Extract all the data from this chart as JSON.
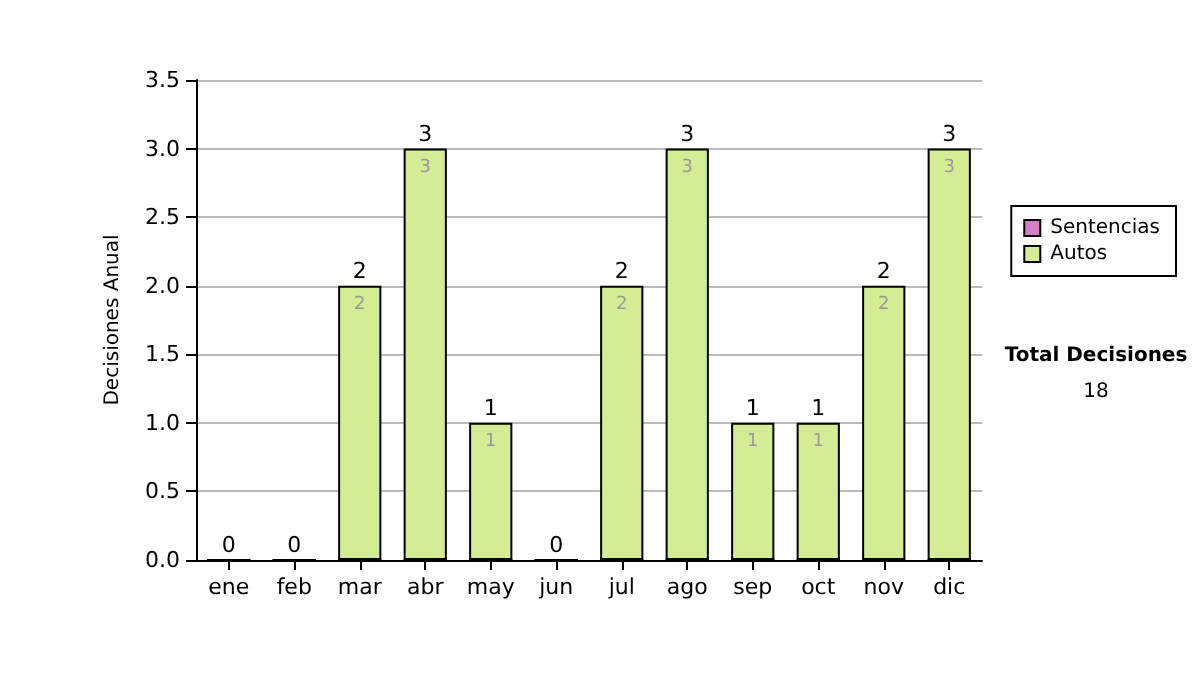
{
  "chart_data": {
    "type": "bar",
    "stacked": true,
    "ylabel": "Decisiones Anual",
    "categories": [
      "ene",
      "feb",
      "mar",
      "abr",
      "may",
      "jun",
      "jul",
      "ago",
      "sep",
      "oct",
      "nov",
      "dic"
    ],
    "series": [
      {
        "name": "Sentencias",
        "color": "#d580c4",
        "values": [
          0,
          0,
          0,
          0,
          0,
          0,
          0,
          0,
          0,
          0,
          0,
          0
        ]
      },
      {
        "name": "Autos",
        "color": "#d4ec94",
        "values": [
          0,
          0,
          2,
          3,
          1,
          0,
          2,
          3,
          1,
          1,
          2,
          3
        ],
        "value_labels": [
          null,
          null,
          "2",
          "3",
          "1",
          null,
          "2",
          "3",
          "1",
          "1",
          "2",
          "3"
        ]
      }
    ],
    "totals": [
      "0",
      "0",
      "2",
      "3",
      "1",
      "0",
      "2",
      "3",
      "1",
      "1",
      "2",
      "3"
    ],
    "ylim": [
      0,
      3.5
    ],
    "yticks": [
      {
        "value": 0,
        "label": "0.0"
      },
      0.5,
      {
        "value": 1,
        "label": "1.0"
      },
      1.5,
      {
        "value": 2,
        "label": "2.0"
      },
      2.5,
      {
        "value": 3,
        "label": "3.0"
      },
      3.5
    ],
    "grid": "y",
    "legend": "right",
    "annotations": [
      "Total Decisiones",
      "18"
    ]
  }
}
